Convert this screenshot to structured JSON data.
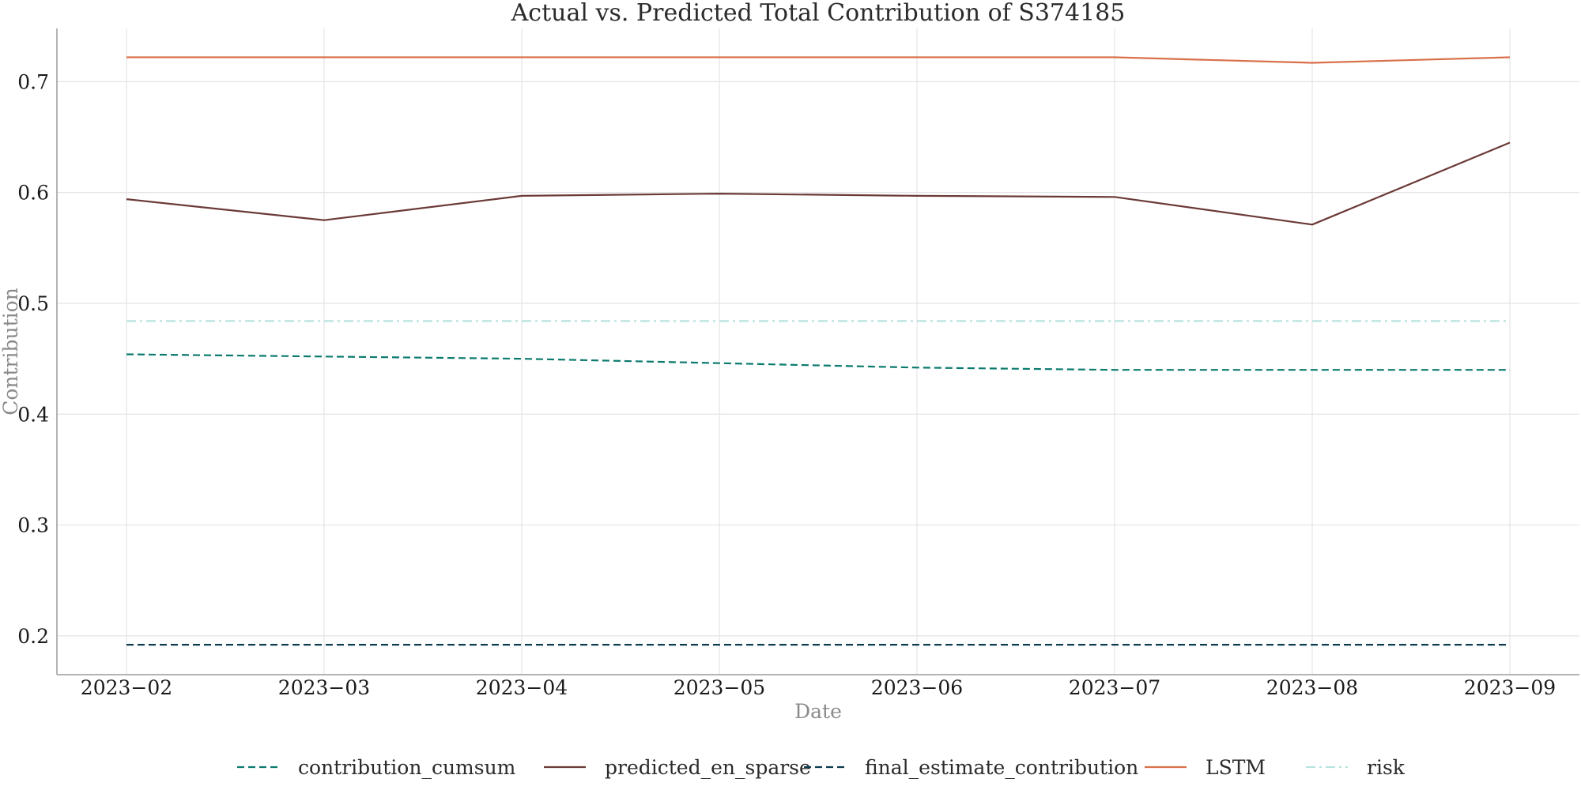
{
  "chart_data": {
    "type": "line",
    "title": "Actual vs. Predicted Total Contribution of S374185",
    "xlabel": "Date",
    "ylabel": "Contribution",
    "x": [
      "2023-02",
      "2023-03",
      "2023-04",
      "2023-05",
      "2023-06",
      "2023-07",
      "2023-08",
      "2023-09"
    ],
    "x_tick_labels": [
      "2023−02",
      "2023−03",
      "2023−04",
      "2023−05",
      "2023−06",
      "2023−07",
      "2023−08",
      "2023−09"
    ],
    "ylim": [
      0.165,
      0.748
    ],
    "y_ticks": [
      0.2,
      0.3,
      0.4,
      0.5,
      0.6,
      0.7
    ],
    "y_tick_labels": [
      "0.2",
      "0.3",
      "0.4",
      "0.5",
      "0.6",
      "0.7"
    ],
    "grid": true,
    "legend_position": "bottom",
    "series": [
      {
        "name": "contribution_cumsum",
        "label": "contribution_cumsum",
        "color": "#0b7a6e",
        "dash": "dashed",
        "values": [
          0.454,
          0.452,
          0.45,
          0.446,
          0.442,
          0.44,
          0.44,
          0.44
        ]
      },
      {
        "name": "predicted_en_sparse",
        "label": "predicted_en_sparse",
        "color": "#6b3a36",
        "dash": "solid",
        "values": [
          0.594,
          0.575,
          0.597,
          0.599,
          0.597,
          0.596,
          0.571,
          0.645
        ]
      },
      {
        "name": "final_estimate_contribution",
        "label": "final_estimate_contribution",
        "color": "#0d3b4f",
        "dash": "dashed",
        "values": [
          0.192,
          0.192,
          0.192,
          0.192,
          0.192,
          0.192,
          0.192,
          0.192
        ]
      },
      {
        "name": "LSTM",
        "label": "LSTM",
        "color": "#d9704a",
        "dash": "solid",
        "values": [
          0.722,
          0.722,
          0.722,
          0.722,
          0.722,
          0.722,
          0.717,
          0.722
        ]
      },
      {
        "name": "risk",
        "label": "risk",
        "color": "#b8e3e0",
        "dash": "dashdot",
        "values": [
          0.484,
          0.484,
          0.484,
          0.484,
          0.484,
          0.484,
          0.484,
          0.484
        ]
      }
    ]
  }
}
